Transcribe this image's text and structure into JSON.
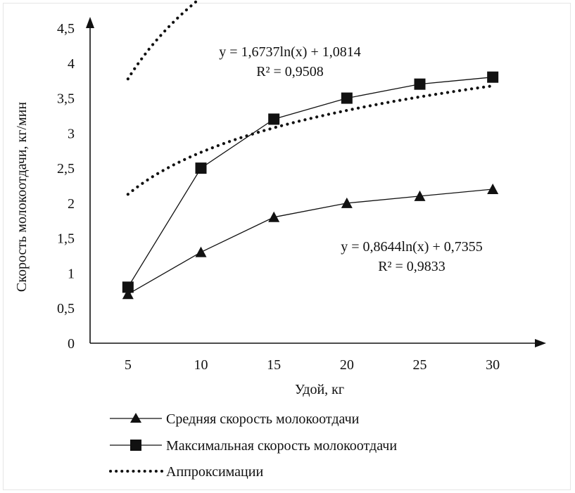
{
  "chart_data": {
    "type": "line",
    "title": "",
    "xlabel": "Удой, кг",
    "ylabel": "Скорость молокоотдачи, кг/мин",
    "x": [
      5,
      10,
      15,
      20,
      25,
      30
    ],
    "x_tick_labels": [
      "5",
      "10",
      "15",
      "20",
      "25",
      "30"
    ],
    "xlim": [
      2.5,
      32.5
    ],
    "ylim": [
      0,
      4.5
    ],
    "y_ticks": [
      0,
      0.5,
      1,
      1.5,
      2,
      2.5,
      3,
      3.5,
      4,
      4.5
    ],
    "y_tick_labels": [
      "0",
      "0,5",
      "1",
      "1,5",
      "2",
      "2,5",
      "3",
      "3,5",
      "4",
      "4,5"
    ],
    "grid": false,
    "legend_position": "bottom-left",
    "series": [
      {
        "name": "Средняя скорость молокоотдачи",
        "marker": "triangle",
        "values": [
          0.7,
          1.3,
          1.8,
          2.0,
          2.1,
          2.2
        ],
        "color": "#111111"
      },
      {
        "name": "Максимальная скорость молокоотдачи",
        "marker": "square",
        "values": [
          0.8,
          2.5,
          3.2,
          3.5,
          3.7,
          3.8
        ],
        "color": "#111111"
      }
    ],
    "trendlines": [
      {
        "type": "logarithmic",
        "fits": "Максимальная скорость молокоотдачи",
        "a": 1.6737,
        "b": 1.0814,
        "equation": "y = 1,6737ln(x) + 1,0814",
        "r2": "R² = 0,9508",
        "label_anchor": "top-left"
      },
      {
        "type": "logarithmic",
        "fits": "Средняя скорость молокоотдачи",
        "a": 0.8644,
        "b": 0.7355,
        "equation": "y = 0,8644ln(x) + 0,7355",
        "r2": "R² = 0,9833",
        "label_anchor": "middle-right"
      }
    ],
    "trendline_legend_label": "Аппроксимации"
  }
}
